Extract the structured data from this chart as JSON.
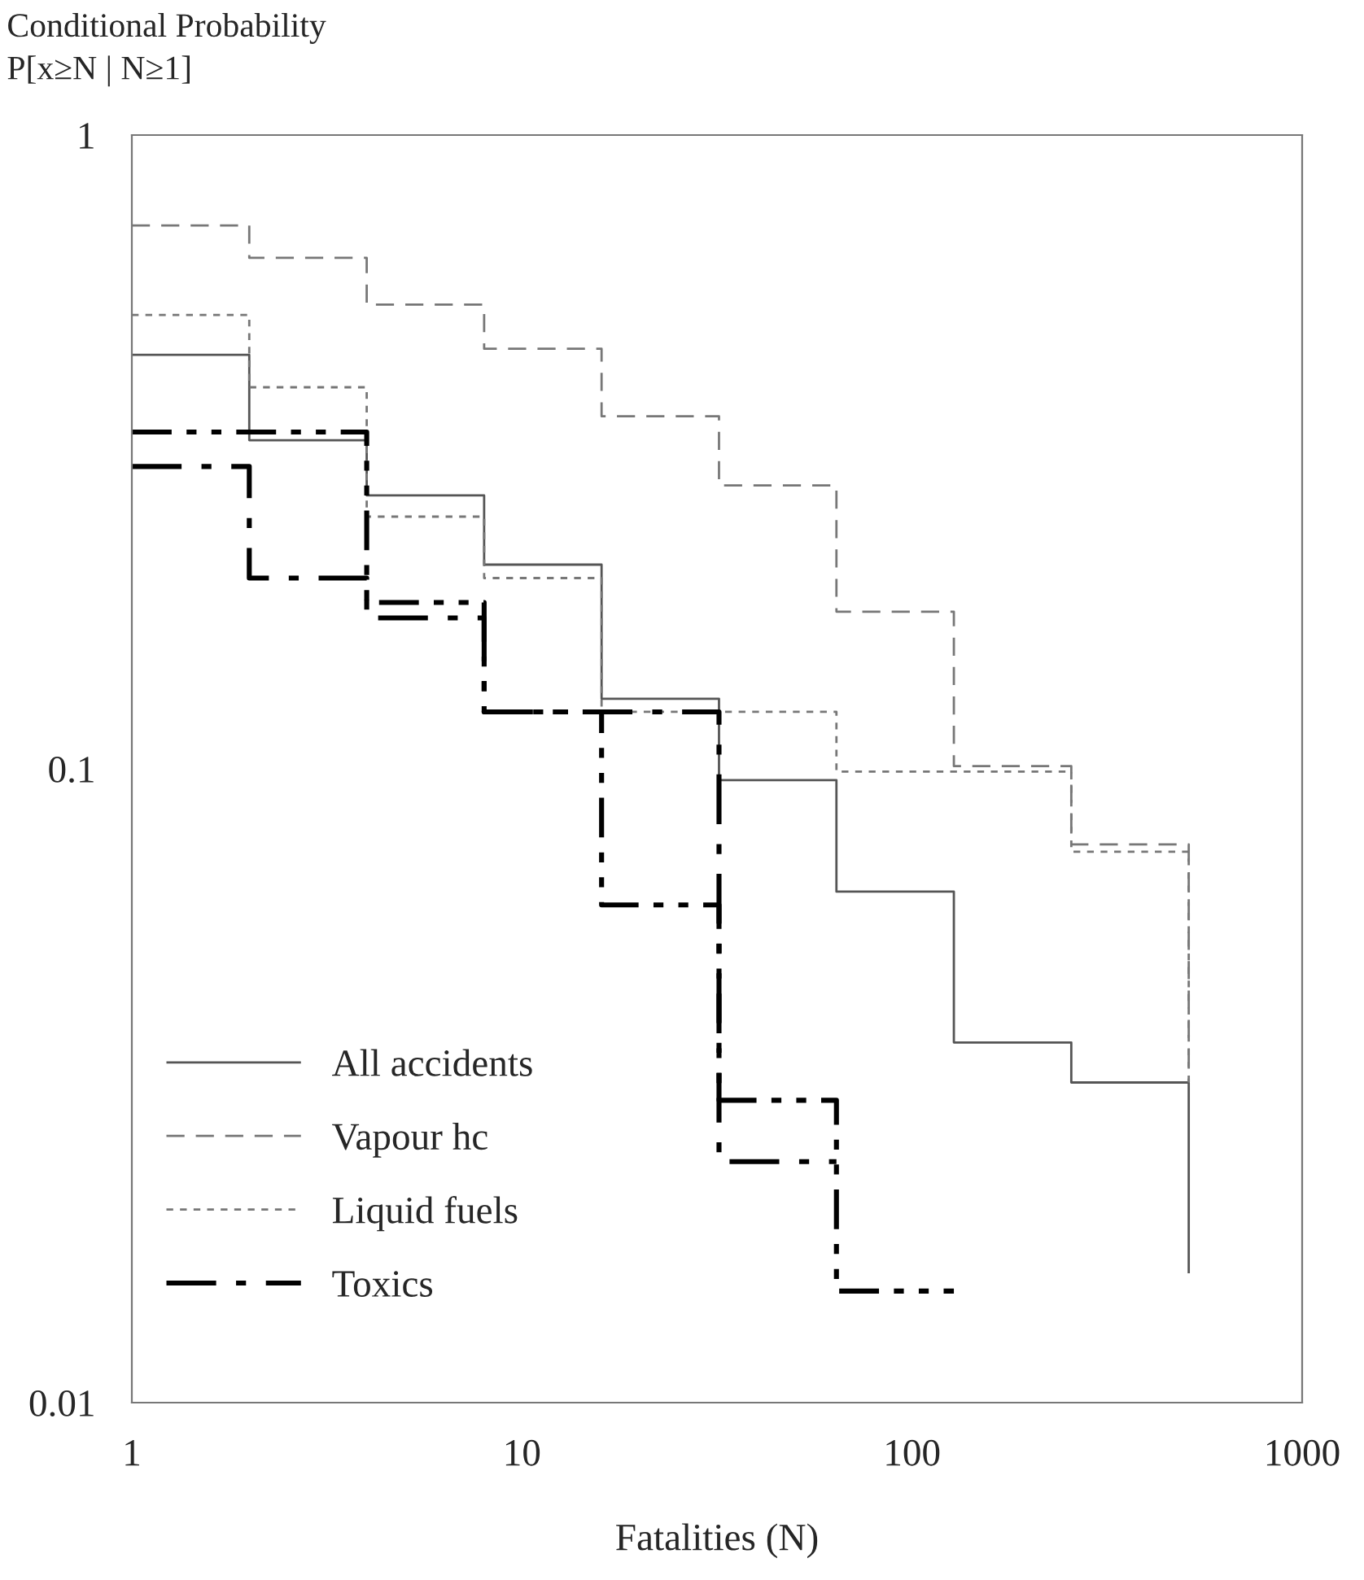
{
  "chart_data": {
    "type": "step",
    "xlabel": "Fatalities (N)",
    "ylabel": "Conditional Probability\nP[x≥N | N≥1]",
    "log": "xy",
    "xlim": [
      1,
      1000
    ],
    "ylim": [
      0.01,
      1
    ],
    "xticks": [
      1,
      10,
      100,
      1000
    ],
    "yticks": [
      0.01,
      0.1,
      1
    ],
    "grid": false,
    "legend": "bottom left",
    "marker": "none",
    "series": [
      {
        "name": "All accidents",
        "color": "#555555",
        "line_style": "solid",
        "x": [
          1,
          2,
          4,
          8,
          16,
          32,
          64,
          128,
          256,
          512
        ],
        "values": [
          0.45,
          0.33,
          0.27,
          0.21,
          0.129,
          0.096,
          0.064,
          0.037,
          0.032,
          0.016
        ]
      },
      {
        "name": "Vapour hc",
        "color": "#777777",
        "line_style": "dashed",
        "x": [
          1,
          2,
          4,
          8,
          16,
          32,
          64,
          128,
          256,
          512
        ],
        "values": [
          0.72,
          0.64,
          0.54,
          0.46,
          0.36,
          0.28,
          0.177,
          0.101,
          0.076,
          0.032
        ]
      },
      {
        "name": "Liquid fuels",
        "color": "#777777",
        "line_style": "dotted",
        "x": [
          1,
          2,
          4,
          8,
          16,
          32,
          64,
          128,
          256,
          512
        ],
        "values": [
          0.52,
          0.4,
          0.25,
          0.2,
          0.123,
          0.123,
          0.099,
          0.099,
          0.074,
          0.032
        ]
      },
      {
        "name": "Toxics",
        "color": "#000000",
        "line_style": "dashdot",
        "x": [
          1,
          2,
          4,
          8,
          16,
          32,
          64
        ],
        "values": [
          0.3,
          0.2,
          0.173,
          0.123,
          0.123,
          0.024,
          0.024
        ]
      },
      {
        "color": "#000000",
        "line_style": "dashdotdot",
        "x": [
          1,
          4,
          8,
          16,
          32,
          64,
          128
        ],
        "values": [
          0.34,
          0.183,
          0.123,
          0.061,
          0.03,
          0.015,
          0.015
        ]
      }
    ]
  }
}
